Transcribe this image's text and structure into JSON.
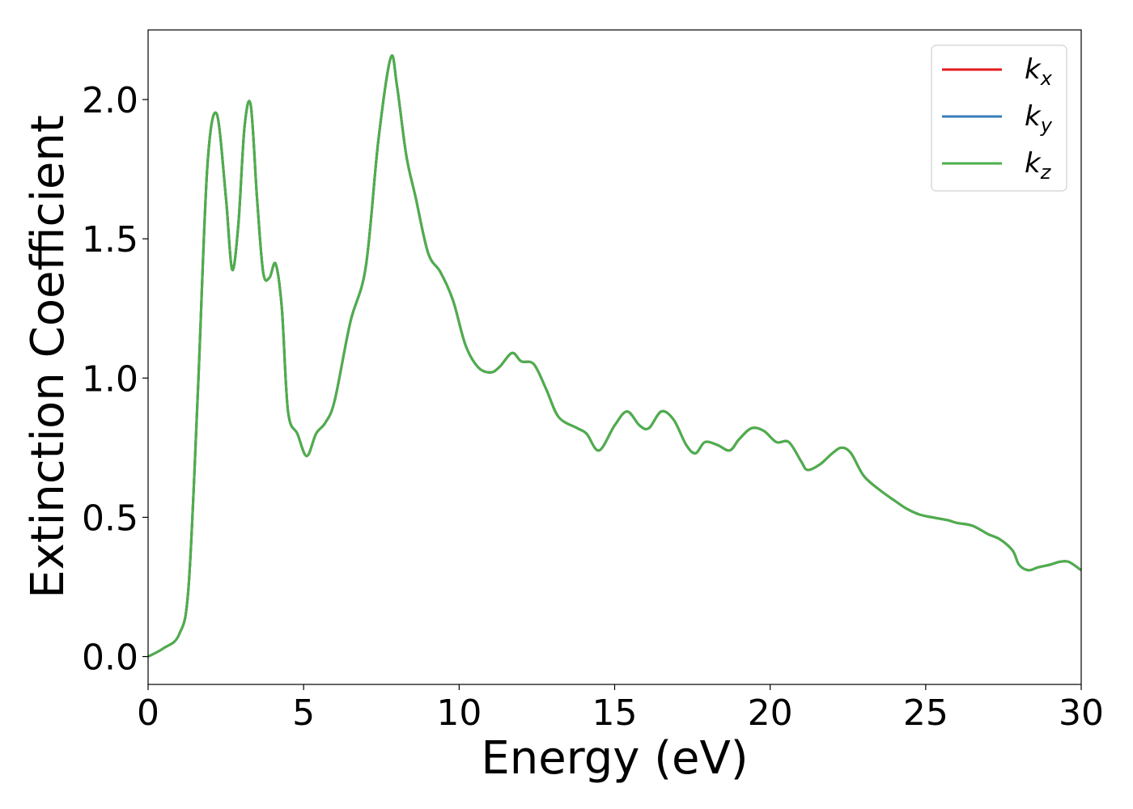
{
  "chart_data": {
    "type": "line",
    "title": "",
    "xlabel": "Energy (eV)",
    "ylabel": "Extinction Coefficient",
    "xlim": [
      0,
      30
    ],
    "ylim": [
      -0.1,
      2.25
    ],
    "xticks": [
      0,
      5,
      10,
      15,
      20,
      25,
      30
    ],
    "xtick_labels": [
      "0",
      "5",
      "10",
      "15",
      "20",
      "25",
      "30"
    ],
    "yticks": [
      0.0,
      0.5,
      1.0,
      1.5,
      2.0
    ],
    "ytick_labels": [
      "0.0",
      "0.5",
      "1.0",
      "1.5",
      "2.0"
    ],
    "grid": false,
    "legend_position": "top-right",
    "x": [
      0,
      0.5,
      1.0,
      1.3,
      1.6,
      1.9,
      2.2,
      2.5,
      2.7,
      2.9,
      3.1,
      3.3,
      3.5,
      3.7,
      3.9,
      4.1,
      4.3,
      4.5,
      4.8,
      5.1,
      5.4,
      5.7,
      6.0,
      6.5,
      7.0,
      7.4,
      7.8,
      8.0,
      8.3,
      8.6,
      9.0,
      9.4,
      9.8,
      10.2,
      10.6,
      11.0,
      11.3,
      11.7,
      12.0,
      12.4,
      12.8,
      13.2,
      13.8,
      14.1,
      14.5,
      15.0,
      15.4,
      15.8,
      16.1,
      16.5,
      16.9,
      17.3,
      17.6,
      17.9,
      18.3,
      18.7,
      19.0,
      19.4,
      19.8,
      20.2,
      20.6,
      21.0,
      21.2,
      21.6,
      22.0,
      22.3,
      22.6,
      23.0,
      23.5,
      24.0,
      24.4,
      24.8,
      25.2,
      25.7,
      26.0,
      26.5,
      27.0,
      27.4,
      27.8,
      28.0,
      28.3,
      28.6,
      29.0,
      29.3,
      29.6,
      30.0
    ],
    "series": [
      {
        "name": "k_x",
        "label_base": "k",
        "label_sub": "x",
        "color": "#e41a1c",
        "values": [
          0.0,
          0.03,
          0.08,
          0.25,
          0.95,
          1.75,
          1.95,
          1.65,
          1.39,
          1.55,
          1.9,
          1.98,
          1.65,
          1.38,
          1.36,
          1.41,
          1.25,
          0.88,
          0.8,
          0.72,
          0.8,
          0.84,
          0.92,
          1.2,
          1.4,
          1.85,
          2.15,
          2.05,
          1.8,
          1.65,
          1.45,
          1.38,
          1.28,
          1.12,
          1.04,
          1.02,
          1.04,
          1.09,
          1.06,
          1.05,
          0.96,
          0.86,
          0.82,
          0.8,
          0.74,
          0.83,
          0.88,
          0.83,
          0.82,
          0.88,
          0.85,
          0.76,
          0.73,
          0.77,
          0.76,
          0.74,
          0.78,
          0.82,
          0.81,
          0.77,
          0.77,
          0.7,
          0.67,
          0.69,
          0.73,
          0.75,
          0.73,
          0.65,
          0.6,
          0.56,
          0.53,
          0.51,
          0.5,
          0.49,
          0.48,
          0.47,
          0.44,
          0.42,
          0.38,
          0.33,
          0.31,
          0.32,
          0.33,
          0.34,
          0.34,
          0.31
        ]
      },
      {
        "name": "k_y",
        "label_base": "k",
        "label_sub": "y",
        "color": "#377eb8",
        "values": [
          0.0,
          0.03,
          0.08,
          0.25,
          0.95,
          1.75,
          1.95,
          1.65,
          1.39,
          1.55,
          1.9,
          1.98,
          1.65,
          1.38,
          1.36,
          1.41,
          1.25,
          0.88,
          0.8,
          0.72,
          0.8,
          0.84,
          0.92,
          1.2,
          1.4,
          1.85,
          2.15,
          2.05,
          1.8,
          1.65,
          1.45,
          1.38,
          1.28,
          1.12,
          1.04,
          1.02,
          1.04,
          1.09,
          1.06,
          1.05,
          0.96,
          0.86,
          0.82,
          0.8,
          0.74,
          0.83,
          0.88,
          0.83,
          0.82,
          0.88,
          0.85,
          0.76,
          0.73,
          0.77,
          0.76,
          0.74,
          0.78,
          0.82,
          0.81,
          0.77,
          0.77,
          0.7,
          0.67,
          0.69,
          0.73,
          0.75,
          0.73,
          0.65,
          0.6,
          0.56,
          0.53,
          0.51,
          0.5,
          0.49,
          0.48,
          0.47,
          0.44,
          0.42,
          0.38,
          0.33,
          0.31,
          0.32,
          0.33,
          0.34,
          0.34,
          0.31
        ]
      },
      {
        "name": "k_z",
        "label_base": "k",
        "label_sub": "z",
        "color": "#4daf4a",
        "values": [
          0.0,
          0.03,
          0.08,
          0.25,
          0.95,
          1.75,
          1.95,
          1.65,
          1.39,
          1.55,
          1.9,
          1.98,
          1.65,
          1.38,
          1.36,
          1.41,
          1.25,
          0.88,
          0.8,
          0.72,
          0.8,
          0.84,
          0.92,
          1.2,
          1.4,
          1.85,
          2.15,
          2.05,
          1.8,
          1.65,
          1.45,
          1.38,
          1.28,
          1.12,
          1.04,
          1.02,
          1.04,
          1.09,
          1.06,
          1.05,
          0.96,
          0.86,
          0.82,
          0.8,
          0.74,
          0.83,
          0.88,
          0.83,
          0.82,
          0.88,
          0.85,
          0.76,
          0.73,
          0.77,
          0.76,
          0.74,
          0.78,
          0.82,
          0.81,
          0.77,
          0.77,
          0.7,
          0.67,
          0.69,
          0.73,
          0.75,
          0.73,
          0.65,
          0.6,
          0.56,
          0.53,
          0.51,
          0.5,
          0.49,
          0.48,
          0.47,
          0.44,
          0.42,
          0.38,
          0.33,
          0.31,
          0.32,
          0.33,
          0.34,
          0.34,
          0.31
        ]
      }
    ]
  }
}
